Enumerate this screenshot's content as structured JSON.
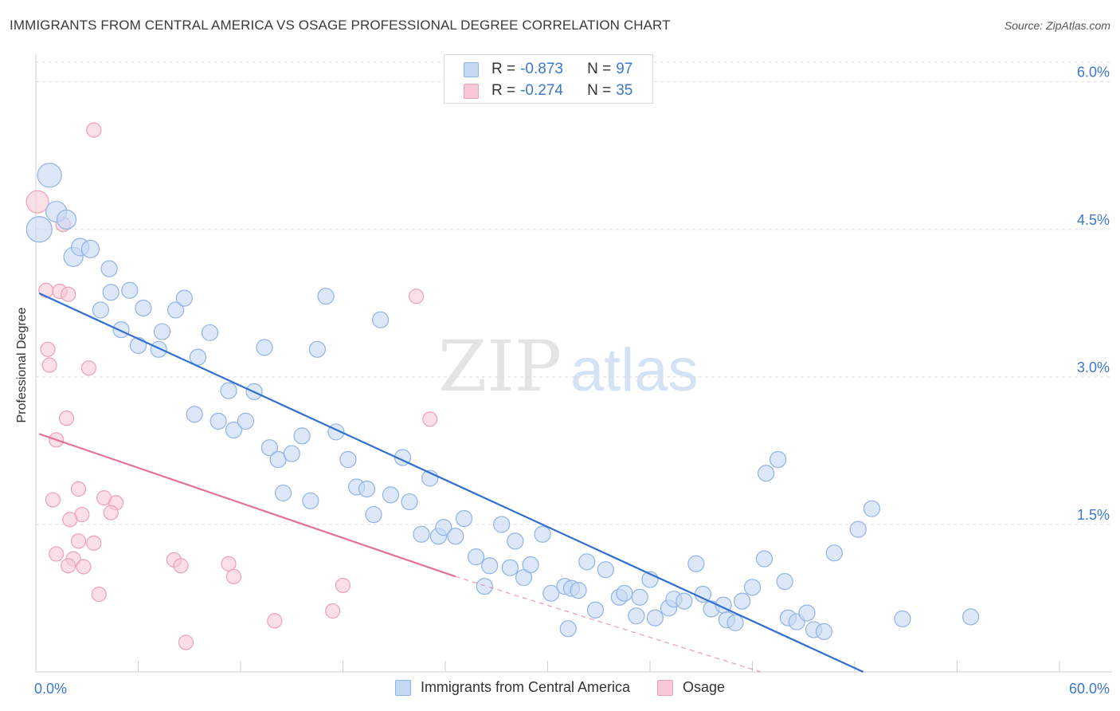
{
  "title": "IMMIGRANTS FROM CENTRAL AMERICA VS OSAGE PROFESSIONAL DEGREE CORRELATION CHART",
  "source": "Source: ZipAtlas.com",
  "watermark": {
    "part1": "ZIP",
    "part2": "atlas"
  },
  "legend_top": [
    {
      "r_label": "R =",
      "r_value": "-0.873",
      "n_label": "N =",
      "n_value": "97"
    },
    {
      "r_label": "R =",
      "r_value": "-0.274",
      "n_label": "N =",
      "n_value": "35"
    }
  ],
  "legend_bottom": [
    {
      "label": "Immigrants from Central America"
    },
    {
      "label": "Osage"
    }
  ],
  "colors": {
    "blue_fill": "#c5d8f3",
    "blue_stroke": "#8fb3e6",
    "blue_line": "#2f6fd0",
    "pink_fill": "#f7c9d7",
    "pink_stroke": "#ee9fb7",
    "pink_line": "#e2729a",
    "tick_label": "#3b78d0",
    "grid": "#dcdcdc"
  },
  "chart_data": {
    "type": "scatter",
    "title": "IMMIGRANTS FROM CENTRAL AMERICA VS OSAGE PROFESSIONAL DEGREE CORRELATION CHART",
    "xlabel": "",
    "ylabel": "Professional Degree",
    "xlim": [
      0,
      60
    ],
    "ylim": [
      0,
      6.2
    ],
    "x_tick_labels": [
      "0.0%",
      "60.0%"
    ],
    "y_ticks": [
      1.5,
      3.0,
      4.5,
      6.0
    ],
    "y_tick_labels": [
      "1.5%",
      "3.0%",
      "4.5%",
      "6.0%"
    ],
    "grid": true,
    "legend_placement": "top-center",
    "series": [
      {
        "name": "Immigrants from Central America",
        "color": "blue",
        "trend": {
          "x": [
            0.2,
            48.5
          ],
          "y": [
            3.85,
            0.0
          ]
        },
        "points": [
          [
            0.2,
            4.5,
            16
          ],
          [
            0.8,
            5.05,
            15
          ],
          [
            1.2,
            4.68,
            13
          ],
          [
            1.8,
            4.6,
            12
          ],
          [
            2.2,
            4.22,
            12
          ],
          [
            2.6,
            4.32,
            11
          ],
          [
            3.2,
            4.3,
            11
          ],
          [
            4.3,
            4.1,
            10
          ],
          [
            3.8,
            3.68,
            10
          ],
          [
            4.4,
            3.86,
            10
          ],
          [
            5.5,
            3.88,
            10
          ],
          [
            5.0,
            3.48,
            10
          ],
          [
            6.3,
            3.7,
            10
          ],
          [
            6.0,
            3.32,
            10
          ],
          [
            7.4,
            3.46,
            10
          ],
          [
            7.2,
            3.28,
            10
          ],
          [
            8.2,
            3.68,
            10
          ],
          [
            8.7,
            3.8,
            10
          ],
          [
            9.5,
            3.2,
            10
          ],
          [
            10.2,
            3.45,
            10
          ],
          [
            9.3,
            2.62,
            10
          ],
          [
            10.7,
            2.55,
            10
          ],
          [
            11.3,
            2.86,
            10
          ],
          [
            11.6,
            2.46,
            10
          ],
          [
            12.3,
            2.55,
            10
          ],
          [
            12.8,
            2.85,
            10
          ],
          [
            13.4,
            3.3,
            10
          ],
          [
            13.7,
            2.28,
            10
          ],
          [
            14.2,
            2.16,
            10
          ],
          [
            14.5,
            1.82,
            10
          ],
          [
            15.0,
            2.22,
            10
          ],
          [
            15.6,
            2.4,
            10
          ],
          [
            16.1,
            1.74,
            10
          ],
          [
            16.5,
            3.28,
            10
          ],
          [
            17.0,
            3.82,
            10
          ],
          [
            17.6,
            2.44,
            10
          ],
          [
            18.3,
            2.16,
            10
          ],
          [
            18.8,
            1.88,
            10
          ],
          [
            19.4,
            1.86,
            10
          ],
          [
            19.8,
            1.6,
            10
          ],
          [
            20.2,
            3.58,
            10
          ],
          [
            20.8,
            1.8,
            10
          ],
          [
            21.5,
            2.18,
            10
          ],
          [
            21.9,
            1.73,
            10
          ],
          [
            22.6,
            1.4,
            10
          ],
          [
            23.1,
            1.97,
            10
          ],
          [
            23.6,
            1.38,
            10
          ],
          [
            23.9,
            1.47,
            10
          ],
          [
            24.6,
            1.38,
            10
          ],
          [
            25.1,
            1.56,
            10
          ],
          [
            25.8,
            1.17,
            10
          ],
          [
            26.3,
            0.87,
            10
          ],
          [
            26.6,
            1.08,
            10
          ],
          [
            27.3,
            1.5,
            10
          ],
          [
            27.8,
            1.06,
            10
          ],
          [
            28.1,
            1.33,
            10
          ],
          [
            28.6,
            0.96,
            10
          ],
          [
            29.0,
            1.09,
            10
          ],
          [
            29.7,
            1.4,
            10
          ],
          [
            30.2,
            0.8,
            10
          ],
          [
            31.0,
            0.87,
            10
          ],
          [
            31.2,
            0.44,
            10
          ],
          [
            31.4,
            0.85,
            10
          ],
          [
            31.8,
            0.83,
            10
          ],
          [
            32.3,
            1.12,
            10
          ],
          [
            32.8,
            0.63,
            10
          ],
          [
            33.4,
            1.04,
            10
          ],
          [
            34.2,
            0.76,
            10
          ],
          [
            34.5,
            0.8,
            10
          ],
          [
            35.2,
            0.57,
            10
          ],
          [
            35.4,
            0.76,
            10
          ],
          [
            36.0,
            0.94,
            10
          ],
          [
            36.3,
            0.55,
            10
          ],
          [
            37.1,
            0.65,
            10
          ],
          [
            37.4,
            0.74,
            10
          ],
          [
            38.0,
            0.72,
            10
          ],
          [
            38.7,
            1.1,
            10
          ],
          [
            39.1,
            0.79,
            10
          ],
          [
            39.6,
            0.64,
            10
          ],
          [
            40.3,
            0.68,
            10
          ],
          [
            40.5,
            0.53,
            10
          ],
          [
            41.0,
            0.5,
            10
          ],
          [
            41.4,
            0.72,
            10
          ],
          [
            42.0,
            0.86,
            10
          ],
          [
            42.7,
            1.15,
            10
          ],
          [
            42.8,
            2.02,
            10
          ],
          [
            43.5,
            2.16,
            10
          ],
          [
            43.9,
            0.92,
            10
          ],
          [
            44.1,
            0.55,
            10
          ],
          [
            44.6,
            0.51,
            10
          ],
          [
            45.2,
            0.6,
            10
          ],
          [
            45.6,
            0.43,
            10
          ],
          [
            46.2,
            0.41,
            10
          ],
          [
            46.8,
            1.21,
            10
          ],
          [
            48.2,
            1.45,
            10
          ],
          [
            49.0,
            1.66,
            10
          ],
          [
            50.8,
            0.54,
            10
          ],
          [
            54.8,
            0.56,
            10
          ]
        ]
      },
      {
        "name": "Osage",
        "color": "pink",
        "trend": {
          "x": [
            0.2,
            24.6
          ],
          "y": [
            2.42,
            0.97
          ]
        },
        "trend_extension": {
          "x": [
            24.6,
            42.5
          ],
          "y": [
            0.97,
            0.0
          ]
        },
        "points": [
          [
            0.1,
            4.78,
            14
          ],
          [
            1.6,
            4.55,
            9
          ],
          [
            0.6,
            3.88,
            9
          ],
          [
            1.4,
            3.87,
            9
          ],
          [
            1.9,
            3.84,
            9
          ],
          [
            0.7,
            3.28,
            9
          ],
          [
            0.8,
            3.12,
            9
          ],
          [
            3.1,
            3.09,
            9
          ],
          [
            3.4,
            5.51,
            9
          ],
          [
            1.8,
            2.58,
            9
          ],
          [
            1.2,
            2.36,
            9
          ],
          [
            2.5,
            1.86,
            9
          ],
          [
            1.0,
            1.75,
            9
          ],
          [
            4.0,
            1.77,
            9
          ],
          [
            4.7,
            1.72,
            9
          ],
          [
            2.7,
            1.6,
            9
          ],
          [
            4.4,
            1.62,
            9
          ],
          [
            2.0,
            1.55,
            9
          ],
          [
            3.4,
            1.31,
            9
          ],
          [
            2.5,
            1.33,
            9
          ],
          [
            1.2,
            1.2,
            9
          ],
          [
            2.2,
            1.15,
            9
          ],
          [
            1.9,
            1.08,
            9
          ],
          [
            2.8,
            1.07,
            9
          ],
          [
            3.7,
            0.79,
            9
          ],
          [
            8.1,
            1.14,
            9
          ],
          [
            8.5,
            1.08,
            9
          ],
          [
            11.3,
            1.1,
            9
          ],
          [
            11.6,
            0.97,
            9
          ],
          [
            8.8,
            0.3,
            9
          ],
          [
            14.0,
            0.52,
            9
          ],
          [
            17.4,
            0.62,
            9
          ],
          [
            18.0,
            0.88,
            9
          ],
          [
            22.3,
            3.82,
            9
          ],
          [
            23.1,
            2.57,
            9
          ]
        ]
      }
    ]
  }
}
